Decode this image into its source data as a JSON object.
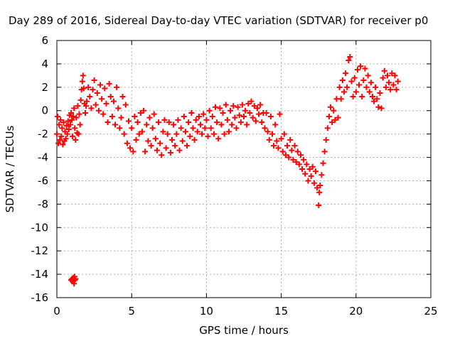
{
  "chart_data": {
    "type": "scatter",
    "title": "Day 289 of 2016, Sidereal Day-to-day VTEC variation (SDTVAR) for receiver p0",
    "xlabel": "GPS time / hours",
    "ylabel": "SDTVAR / TECUs",
    "xlim": [
      0,
      25
    ],
    "ylim": [
      -16,
      6
    ],
    "xticks": [
      0,
      5,
      10,
      15,
      20,
      25
    ],
    "yticks": [
      -16,
      -14,
      -12,
      -10,
      -8,
      -6,
      -4,
      -2,
      0,
      2,
      4,
      6
    ],
    "grid": true,
    "legend": "none",
    "marker": "+",
    "marker_color": "#ff0000",
    "series": [
      {
        "name": "SDTVAR",
        "points": [
          [
            0.0,
            -2.0
          ],
          [
            0.05,
            -0.5
          ],
          [
            0.1,
            -2.8
          ],
          [
            0.15,
            -1.2
          ],
          [
            0.2,
            -2.5
          ],
          [
            0.25,
            -0.8
          ],
          [
            0.3,
            -2.2
          ],
          [
            0.35,
            -1.5
          ],
          [
            0.4,
            -2.9
          ],
          [
            0.45,
            -1.0
          ],
          [
            0.5,
            -2.6
          ],
          [
            0.55,
            -1.8
          ],
          [
            0.6,
            -2.4
          ],
          [
            0.65,
            -1.3
          ],
          [
            0.7,
            -2.0
          ],
          [
            0.75,
            -0.9
          ],
          [
            0.8,
            -1.6
          ],
          [
            0.85,
            -0.4
          ],
          [
            0.9,
            -1.2
          ],
          [
            0.95,
            -0.2
          ],
          [
            1.0,
            -0.8
          ],
          [
            1.05,
            -2.2
          ],
          [
            1.1,
            -0.5
          ],
          [
            1.15,
            0.2
          ],
          [
            1.2,
            -1.5
          ],
          [
            1.25,
            -2.5
          ],
          [
            1.3,
            -0.6
          ],
          [
            1.35,
            -1.9
          ],
          [
            1.4,
            0.4
          ],
          [
            1.45,
            -2.0
          ],
          [
            1.5,
            -0.3
          ],
          [
            1.55,
            -1.2
          ],
          [
            1.6,
            0.9
          ],
          [
            1.65,
            1.8
          ],
          [
            1.7,
            2.5
          ],
          [
            1.75,
            3.0
          ],
          [
            1.8,
            1.9
          ],
          [
            1.85,
            0.6
          ],
          [
            1.9,
            -0.2
          ],
          [
            1.95,
            0.4
          ],
          [
            1.0,
            -14.4
          ],
          [
            1.05,
            -14.6
          ],
          [
            1.1,
            -14.3
          ],
          [
            1.15,
            -14.8
          ],
          [
            1.2,
            -14.5
          ],
          [
            0.95,
            -14.5
          ],
          [
            1.25,
            -14.4
          ],
          [
            1.18,
            -14.2
          ],
          [
            2.0,
            0.8
          ],
          [
            2.1,
            2.0
          ],
          [
            2.2,
            1.2
          ],
          [
            2.3,
            0.2
          ],
          [
            2.4,
            1.8
          ],
          [
            2.5,
            2.6
          ],
          [
            2.6,
            0.5
          ],
          [
            2.7,
            1.5
          ],
          [
            2.8,
            0.0
          ],
          [
            2.9,
            2.2
          ],
          [
            3.0,
            1.0
          ],
          [
            3.1,
            -0.3
          ],
          [
            3.2,
            1.9
          ],
          [
            3.3,
            0.6
          ],
          [
            3.4,
            -1.0
          ],
          [
            3.5,
            2.3
          ],
          [
            3.6,
            1.2
          ],
          [
            3.7,
            -0.5
          ],
          [
            3.8,
            0.8
          ],
          [
            3.9,
            -1.2
          ],
          [
            4.0,
            2.0
          ],
          [
            4.1,
            0.2
          ],
          [
            4.2,
            -1.5
          ],
          [
            4.3,
            -0.6
          ],
          [
            4.4,
            1.2
          ],
          [
            4.5,
            -2.0
          ],
          [
            4.6,
            0.5
          ],
          [
            4.7,
            -2.8
          ],
          [
            4.8,
            -0.9
          ],
          [
            4.9,
            -3.2
          ],
          [
            5.0,
            -1.5
          ],
          [
            5.1,
            -3.5
          ],
          [
            5.2,
            -0.5
          ],
          [
            5.3,
            -2.5
          ],
          [
            5.4,
            -1.0
          ],
          [
            5.5,
            -2.0
          ],
          [
            5.6,
            -0.2
          ],
          [
            5.7,
            -1.8
          ],
          [
            5.8,
            0.0
          ],
          [
            5.9,
            -3.5
          ],
          [
            6.0,
            -1.2
          ],
          [
            6.1,
            -2.6
          ],
          [
            6.2,
            -0.6
          ],
          [
            6.3,
            -3.0
          ],
          [
            6.4,
            -1.5
          ],
          [
            6.5,
            -0.3
          ],
          [
            6.6,
            -2.4
          ],
          [
            6.7,
            -3.4
          ],
          [
            6.8,
            -1.0
          ],
          [
            6.9,
            -2.8
          ],
          [
            7.0,
            -3.8
          ],
          [
            7.1,
            -1.8
          ],
          [
            7.2,
            -0.8
          ],
          [
            7.3,
            -3.2
          ],
          [
            7.4,
            -2.0
          ],
          [
            7.5,
            -1.0
          ],
          [
            7.6,
            -3.6
          ],
          [
            7.7,
            -2.5
          ],
          [
            7.8,
            -1.2
          ],
          [
            7.9,
            -3.0
          ],
          [
            8.0,
            -2.0
          ],
          [
            8.1,
            -0.8
          ],
          [
            8.2,
            -3.4
          ],
          [
            8.3,
            -1.5
          ],
          [
            8.4,
            -2.6
          ],
          [
            8.5,
            -0.5
          ],
          [
            8.6,
            -1.8
          ],
          [
            8.7,
            -3.0
          ],
          [
            8.8,
            -1.0
          ],
          [
            8.9,
            -2.2
          ],
          [
            9.0,
            -0.2
          ],
          [
            9.1,
            -1.5
          ],
          [
            9.2,
            -2.5
          ],
          [
            9.3,
            -0.8
          ],
          [
            9.4,
            -1.8
          ],
          [
            9.5,
            -0.5
          ],
          [
            9.6,
            -1.2
          ],
          [
            9.7,
            -2.0
          ],
          [
            9.8,
            -0.3
          ],
          [
            9.9,
            -1.5
          ],
          [
            10.0,
            -0.8
          ],
          [
            10.1,
            -2.2
          ],
          [
            10.2,
            0.0
          ],
          [
            10.3,
            -1.5
          ],
          [
            10.4,
            -0.5
          ],
          [
            10.5,
            -2.0
          ],
          [
            10.6,
            0.3
          ],
          [
            10.7,
            -1.0
          ],
          [
            10.8,
            -2.4
          ],
          [
            10.9,
            0.2
          ],
          [
            11.0,
            -1.2
          ],
          [
            11.1,
            -0.2
          ],
          [
            11.2,
            -2.0
          ],
          [
            11.3,
            0.5
          ],
          [
            11.4,
            -0.8
          ],
          [
            11.5,
            -1.8
          ],
          [
            11.6,
            0.0
          ],
          [
            11.7,
            -1.2
          ],
          [
            11.8,
            0.4
          ],
          [
            11.9,
            -0.6
          ],
          [
            12.0,
            -1.5
          ],
          [
            12.1,
            0.3
          ],
          [
            12.2,
            -0.4
          ],
          [
            12.3,
            -1.0
          ],
          [
            12.4,
            0.5
          ],
          [
            12.5,
            -0.5
          ],
          [
            12.6,
            0.0
          ],
          [
            12.7,
            -1.2
          ],
          [
            12.8,
            0.6
          ],
          [
            12.9,
            -0.2
          ],
          [
            13.0,
            0.8
          ],
          [
            13.1,
            -0.6
          ],
          [
            13.2,
            0.4
          ],
          [
            13.3,
            -0.9
          ],
          [
            13.4,
            0.2
          ],
          [
            13.5,
            -0.3
          ],
          [
            13.6,
            0.5
          ],
          [
            13.7,
            -1.0
          ],
          [
            13.8,
            -0.2
          ],
          [
            13.9,
            -1.5
          ],
          [
            14.0,
            -0.2
          ],
          [
            14.1,
            -1.8
          ],
          [
            14.2,
            -2.5
          ],
          [
            14.3,
            -0.5
          ],
          [
            14.4,
            -2.0
          ],
          [
            14.5,
            -3.0
          ],
          [
            14.6,
            -1.2
          ],
          [
            14.7,
            -2.6
          ],
          [
            14.8,
            -3.2
          ],
          [
            14.9,
            -0.3
          ],
          [
            15.0,
            -2.4
          ],
          [
            15.1,
            -3.5
          ],
          [
            15.2,
            -2.0
          ],
          [
            15.3,
            -3.8
          ],
          [
            15.4,
            -3.0
          ],
          [
            15.5,
            -4.0
          ],
          [
            15.6,
            -2.5
          ],
          [
            15.7,
            -3.4
          ],
          [
            15.8,
            -4.2
          ],
          [
            15.9,
            -3.0
          ],
          [
            16.0,
            -4.4
          ],
          [
            16.1,
            -3.5
          ],
          [
            16.2,
            -4.6
          ],
          [
            16.3,
            -3.8
          ],
          [
            16.4,
            -5.0
          ],
          [
            16.5,
            -4.2
          ],
          [
            16.6,
            -5.4
          ],
          [
            16.7,
            -4.6
          ],
          [
            16.8,
            -6.0
          ],
          [
            16.9,
            -5.0
          ],
          [
            17.0,
            -5.6
          ],
          [
            17.1,
            -4.8
          ],
          [
            17.2,
            -6.2
          ],
          [
            17.3,
            -5.2
          ],
          [
            17.4,
            -6.6
          ],
          [
            17.5,
            -8.1
          ],
          [
            17.55,
            -7.0
          ],
          [
            17.6,
            -6.4
          ],
          [
            17.7,
            -5.5
          ],
          [
            17.8,
            -4.5
          ],
          [
            17.9,
            -3.5
          ],
          [
            18.0,
            -2.5
          ],
          [
            18.1,
            -1.5
          ],
          [
            18.2,
            -0.5
          ],
          [
            18.3,
            0.3
          ],
          [
            18.4,
            -1.0
          ],
          [
            18.5,
            0.0
          ],
          [
            18.6,
            -0.8
          ],
          [
            18.7,
            1.0
          ],
          [
            18.8,
            -0.6
          ],
          [
            18.9,
            2.0
          ],
          [
            19.0,
            1.0
          ],
          [
            19.1,
            2.6
          ],
          [
            19.2,
            1.6
          ],
          [
            19.3,
            3.2
          ],
          [
            19.4,
            2.0
          ],
          [
            19.5,
            4.3
          ],
          [
            19.6,
            4.6
          ],
          [
            19.7,
            2.5
          ],
          [
            19.8,
            1.2
          ],
          [
            19.9,
            2.8
          ],
          [
            20.0,
            1.6
          ],
          [
            20.1,
            3.5
          ],
          [
            20.2,
            2.2
          ],
          [
            20.3,
            3.8
          ],
          [
            20.4,
            1.2
          ],
          [
            20.5,
            2.6
          ],
          [
            20.6,
            3.6
          ],
          [
            20.7,
            2.0
          ],
          [
            20.8,
            3.0
          ],
          [
            20.9,
            1.6
          ],
          [
            21.0,
            2.4
          ],
          [
            21.1,
            1.2
          ],
          [
            21.2,
            0.8
          ],
          [
            21.3,
            2.0
          ],
          [
            21.4,
            1.0
          ],
          [
            21.5,
            0.3
          ],
          [
            21.6,
            1.5
          ],
          [
            21.7,
            0.2
          ],
          [
            21.8,
            2.8
          ],
          [
            21.9,
            3.4
          ],
          [
            22.0,
            2.0
          ],
          [
            22.1,
            3.0
          ],
          [
            22.2,
            2.4
          ],
          [
            22.3,
            1.8
          ],
          [
            22.4,
            3.2
          ],
          [
            22.5,
            2.2
          ],
          [
            22.6,
            3.0
          ],
          [
            22.7,
            1.8
          ],
          [
            22.8,
            2.5
          ]
        ]
      }
    ]
  }
}
